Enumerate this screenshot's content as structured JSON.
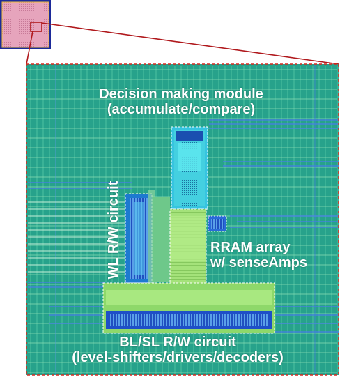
{
  "labels": {
    "decision_line1": "Decision making module",
    "decision_line2": "(accumulate/compare)",
    "wl": "WL R/W circuit",
    "rram_line1": "RRAM array",
    "rram_line2": "w/ senseAmps",
    "bl_line1": "BL/SL R/W circuit",
    "bl_line2": "(level-shifters/drivers/decoders)"
  },
  "colors": {
    "background_teal": "#2fa890",
    "decision_block": "#33dde6",
    "wl_block": "#2a8fe0",
    "array_block": "#9fe070",
    "bl_block": "#2c5ad8",
    "border_dashed": "#d42a20",
    "zoom_lines": "#b0181c",
    "chip_thumbnail": "#e0a0b8"
  }
}
